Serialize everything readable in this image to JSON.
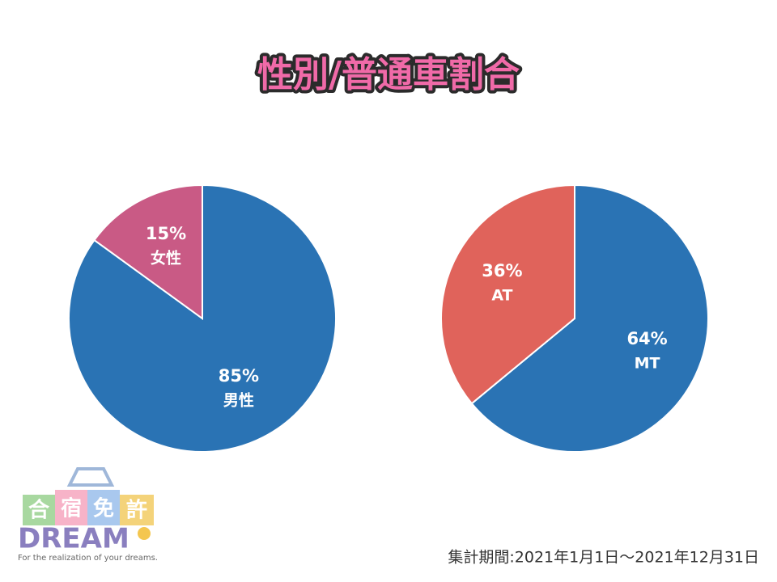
{
  "title": "性別/普通車割合",
  "chart_data": [
    {
      "type": "pie",
      "categories": [
        "男性",
        "女性"
      ],
      "values": [
        85,
        15
      ],
      "value_labels": [
        "85%",
        "15%"
      ],
      "colors": [
        "#2a73b4",
        "#c95a85"
      ]
    },
    {
      "type": "pie",
      "categories": [
        "MT",
        "AT"
      ],
      "values": [
        64,
        36
      ],
      "value_labels": [
        "64%",
        "36%"
      ],
      "colors": [
        "#2a73b4",
        "#e0635b"
      ]
    }
  ],
  "period": "集計期間:2021年1月1日～2021年12月31日",
  "logo": {
    "kanji": [
      "合",
      "宿",
      "免",
      "許"
    ],
    "name": "DREAM",
    "tagline": "For the realization of your dreams."
  }
}
